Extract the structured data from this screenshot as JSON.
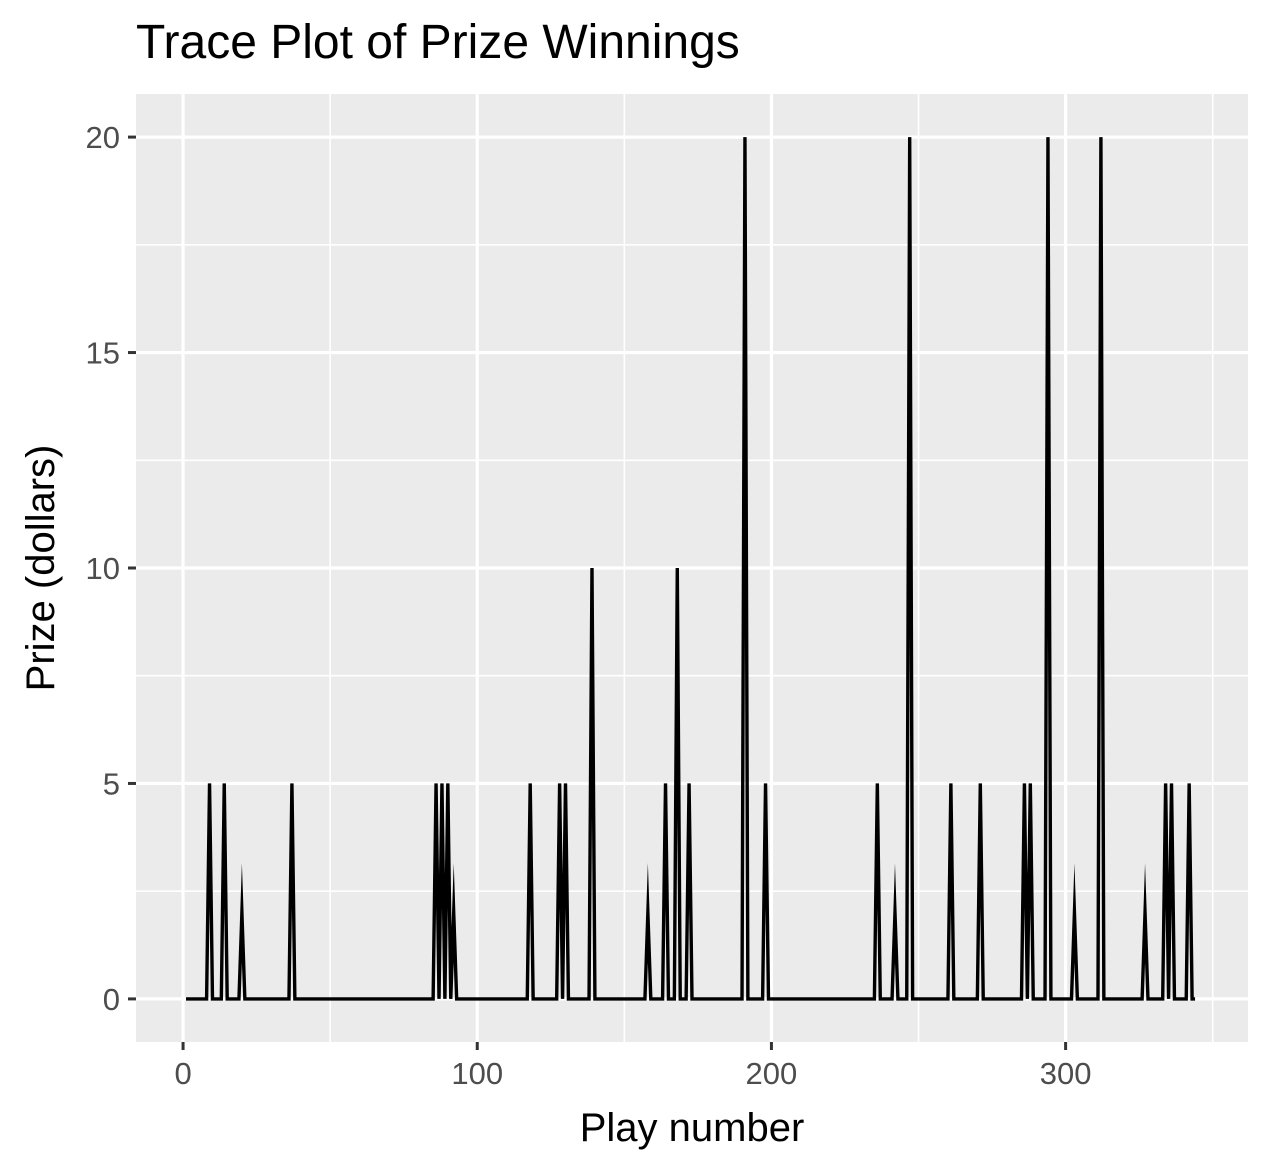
{
  "chart_data": {
    "type": "line",
    "title": "Trace Plot of Prize Winnings",
    "xlabel": "Play number",
    "ylabel": "Prize (dollars)",
    "xlim": [
      -16,
      362
    ],
    "ylim": [
      -1,
      21
    ],
    "x_ticks": [
      0,
      100,
      200,
      300
    ],
    "y_ticks": [
      0,
      5,
      10,
      15,
      20
    ],
    "x_tick_labels": [
      "0",
      "100",
      "200",
      "300"
    ],
    "y_tick_labels": [
      "0",
      "5",
      "10",
      "15",
      "20"
    ],
    "grid": true,
    "series": [
      {
        "line_color": "#000000",
        "x": [
          1,
          8,
          9,
          10,
          13,
          14,
          15,
          19,
          20,
          21,
          36,
          37,
          38,
          85,
          86,
          87,
          88,
          89,
          90,
          91,
          92,
          93,
          117,
          118,
          119,
          127,
          128,
          129,
          130,
          131,
          138,
          139,
          140,
          157,
          158,
          159,
          163,
          164,
          165,
          167,
          168,
          169,
          171,
          172,
          173,
          174,
          190,
          191,
          192,
          197,
          198,
          199,
          235,
          236,
          237,
          241,
          242,
          243,
          246,
          247,
          248,
          260,
          261,
          262,
          270,
          271,
          272,
          285,
          286,
          287,
          288,
          289,
          290,
          293,
          294,
          295,
          302,
          303,
          304,
          311,
          312,
          313,
          326,
          327,
          328,
          333,
          334,
          335,
          336,
          337,
          338,
          341,
          342,
          343,
          344
        ],
        "y": [
          0,
          0,
          5,
          0,
          0,
          5,
          0,
          0,
          2,
          0,
          0,
          5,
          0,
          0,
          5,
          0,
          5,
          0,
          5,
          0,
          2,
          0,
          0,
          5,
          0,
          0,
          5,
          0,
          5,
          0,
          0,
          10,
          0,
          0,
          2,
          0,
          0,
          5,
          0,
          0,
          10,
          0,
          0,
          5,
          0,
          0,
          0,
          20,
          0,
          0,
          5,
          0,
          0,
          5,
          0,
          0,
          2,
          0,
          0,
          20,
          0,
          0,
          5,
          0,
          0,
          5,
          0,
          0,
          5,
          0,
          5,
          0,
          0,
          0,
          20,
          0,
          0,
          2,
          0,
          0,
          20,
          0,
          0,
          2,
          0,
          0,
          5,
          0,
          5,
          0,
          0,
          0,
          5,
          0,
          0
        ]
      }
    ]
  },
  "colors": {
    "panel_background": "#ebebeb",
    "grid_major": "#ffffff",
    "line": "#000000",
    "tick_label": "#4d4d4d",
    "tick_mark": "#333333"
  }
}
